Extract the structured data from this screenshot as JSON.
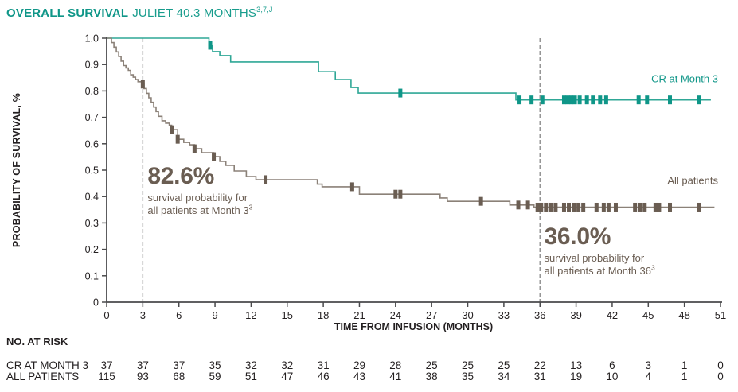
{
  "title": {
    "bold": "OVERALL SURVIVAL",
    "regular": "JULIET 40.3 MONTHS",
    "sup": "3,7,J"
  },
  "colors": {
    "teal": "#0f9688",
    "teal_line": "#2fa796",
    "brown": "#6a5d52",
    "brown_line": "#8b8178",
    "axis": "#4a4a4c",
    "tick_text": "#231f20",
    "dashed_line": "#8f8f8f"
  },
  "chart_data": {
    "type": "line",
    "subtype": "kaplan_meier_step",
    "title": "OVERALL SURVIVAL JULIET 40.3 MONTHS",
    "xlabel": "TIME FROM INFUSION (MONTHS)",
    "ylabel": "PROBABILITY OF SURVIVAL, %",
    "xlim": [
      0,
      51
    ],
    "ylim": [
      0,
      1.0
    ],
    "xticks": [
      0,
      3,
      6,
      9,
      12,
      15,
      18,
      21,
      24,
      27,
      30,
      33,
      36,
      39,
      42,
      45,
      48,
      51
    ],
    "ytick_labels": [
      "1.0",
      "0.9",
      "0.8",
      "0.7",
      "0.6",
      "0.5",
      "0.4",
      "0.3",
      "0.2",
      "0.1",
      "0"
    ],
    "grid": false,
    "reference_lines_x": [
      3,
      36
    ],
    "series": [
      {
        "name": "CR at Month 3",
        "color_key": "teal",
        "label_pos": {
          "x": 50.8,
          "y": 0.845
        },
        "points": [
          [
            0,
            1.0
          ],
          [
            8.5,
            0.973
          ],
          [
            8.8,
            0.949
          ],
          [
            9.4,
            0.934
          ],
          [
            10.3,
            0.91
          ],
          [
            17.6,
            0.873
          ],
          [
            19.0,
            0.843
          ],
          [
            20.3,
            0.813
          ],
          [
            20.9,
            0.792
          ],
          [
            34.0,
            0.766
          ],
          [
            50.2,
            0.766
          ]
        ],
        "censors": [
          [
            8.6,
            0.973
          ],
          [
            24.4,
            0.792
          ],
          [
            34.3,
            0.766
          ],
          [
            35.3,
            0.766
          ],
          [
            36.2,
            0.766
          ],
          [
            38.0,
            0.766
          ],
          [
            38.3,
            0.766
          ],
          [
            38.6,
            0.766
          ],
          [
            38.9,
            0.766
          ],
          [
            39.3,
            0.766
          ],
          [
            39.9,
            0.766
          ],
          [
            40.4,
            0.766
          ],
          [
            41.0,
            0.766
          ],
          [
            41.5,
            0.766
          ],
          [
            44.2,
            0.766
          ],
          [
            44.9,
            0.766
          ],
          [
            46.8,
            0.766
          ],
          [
            49.2,
            0.766
          ]
        ]
      },
      {
        "name": "All patients",
        "color_key": "brown",
        "label_pos": {
          "x": 50.8,
          "y": 0.462
        },
        "points": [
          [
            0,
            1.0
          ],
          [
            0.4,
            0.983
          ],
          [
            0.6,
            0.966
          ],
          [
            0.8,
            0.948
          ],
          [
            1.0,
            0.931
          ],
          [
            1.2,
            0.913
          ],
          [
            1.4,
            0.896
          ],
          [
            1.6,
            0.887
          ],
          [
            1.8,
            0.878
          ],
          [
            2.0,
            0.861
          ],
          [
            2.2,
            0.852
          ],
          [
            2.4,
            0.843
          ],
          [
            2.6,
            0.835
          ],
          [
            3.0,
            0.826
          ],
          [
            3.1,
            0.809
          ],
          [
            3.3,
            0.791
          ],
          [
            3.5,
            0.774
          ],
          [
            3.7,
            0.757
          ],
          [
            3.9,
            0.739
          ],
          [
            4.1,
            0.722
          ],
          [
            4.3,
            0.704
          ],
          [
            4.6,
            0.687
          ],
          [
            4.9,
            0.678
          ],
          [
            5.2,
            0.67
          ],
          [
            5.4,
            0.653
          ],
          [
            5.9,
            0.617
          ],
          [
            6.4,
            0.605
          ],
          [
            6.9,
            0.596
          ],
          [
            7.3,
            0.581
          ],
          [
            7.9,
            0.566
          ],
          [
            8.9,
            0.551
          ],
          [
            9.4,
            0.533
          ],
          [
            9.9,
            0.518
          ],
          [
            10.6,
            0.497
          ],
          [
            11.6,
            0.476
          ],
          [
            12.4,
            0.464
          ],
          [
            17.5,
            0.447
          ],
          [
            17.9,
            0.437
          ],
          [
            21.0,
            0.409
          ],
          [
            27.7,
            0.395
          ],
          [
            28.3,
            0.382
          ],
          [
            33.5,
            0.368
          ],
          [
            35.5,
            0.36
          ],
          [
            50.5,
            0.36
          ]
        ],
        "censors": [
          [
            3.0,
            0.826
          ],
          [
            5.4,
            0.653
          ],
          [
            5.9,
            0.617
          ],
          [
            7.3,
            0.581
          ],
          [
            8.9,
            0.551
          ],
          [
            13.2,
            0.464
          ],
          [
            20.4,
            0.437
          ],
          [
            24.0,
            0.409
          ],
          [
            24.4,
            0.409
          ],
          [
            31.1,
            0.382
          ],
          [
            34.2,
            0.368
          ],
          [
            35.0,
            0.368
          ],
          [
            35.8,
            0.36
          ],
          [
            36.1,
            0.36
          ],
          [
            36.5,
            0.36
          ],
          [
            36.9,
            0.36
          ],
          [
            37.3,
            0.36
          ],
          [
            38.0,
            0.36
          ],
          [
            38.4,
            0.36
          ],
          [
            38.8,
            0.36
          ],
          [
            39.2,
            0.36
          ],
          [
            39.6,
            0.36
          ],
          [
            40.7,
            0.36
          ],
          [
            41.3,
            0.36
          ],
          [
            41.7,
            0.36
          ],
          [
            42.3,
            0.36
          ],
          [
            43.9,
            0.36
          ],
          [
            44.3,
            0.36
          ],
          [
            44.7,
            0.36
          ],
          [
            45.6,
            0.36
          ],
          [
            45.9,
            0.36
          ],
          [
            46.8,
            0.36
          ],
          [
            49.2,
            0.36
          ]
        ]
      }
    ],
    "annotations": [
      {
        "value": "82.6%",
        "line1": "survival probability for",
        "line2": "all patients at Month 3",
        "sup": "3",
        "pos": {
          "x": 3.4,
          "y": 0.521
        }
      },
      {
        "value": "36.0%",
        "line1": "survival probability for",
        "line2": "all patients at Month 36",
        "sup": "3",
        "pos": {
          "x": 36.35,
          "y": 0.292
        }
      }
    ]
  },
  "risk_table": {
    "heading": "NO. AT RISK",
    "months": [
      0,
      3,
      6,
      9,
      12,
      15,
      18,
      21,
      24,
      27,
      30,
      33,
      36,
      39,
      42,
      45,
      48,
      51
    ],
    "rows": [
      {
        "label": "CR AT MONTH 3",
        "values": [
          37,
          37,
          37,
          35,
          32,
          32,
          31,
          29,
          28,
          25,
          25,
          25,
          22,
          13,
          6,
          3,
          1,
          0
        ]
      },
      {
        "label": "ALL PATIENTS",
        "values": [
          115,
          93,
          68,
          59,
          51,
          47,
          46,
          43,
          41,
          38,
          35,
          34,
          31,
          19,
          10,
          4,
          1,
          0
        ]
      }
    ]
  }
}
